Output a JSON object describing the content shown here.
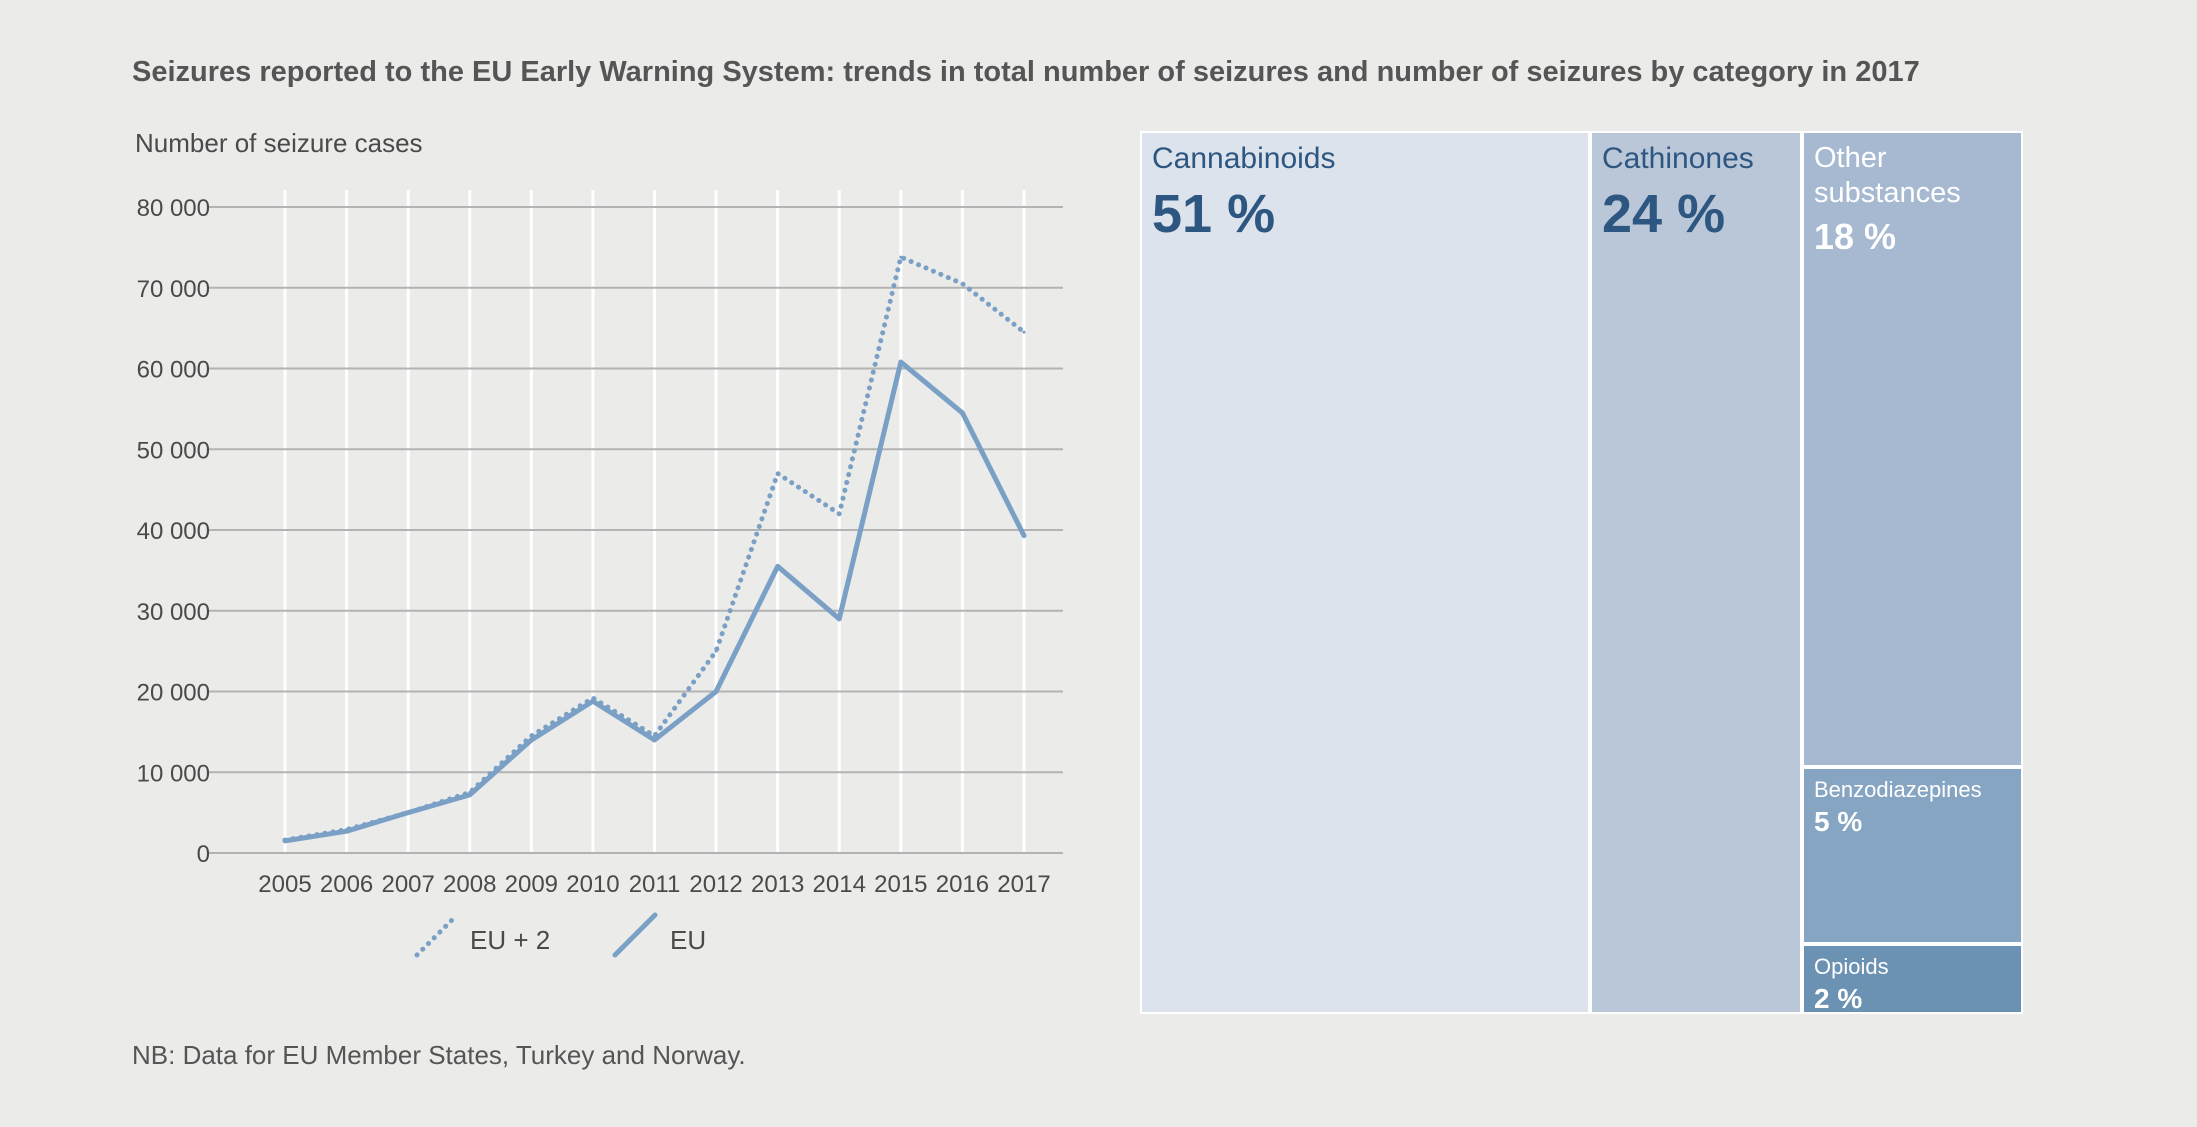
{
  "title": "Seizures reported to the EU Early Warning System: trends in total number of seizures and number of seizures by category in 2017",
  "footnote": "NB: Data for EU Member States, Turkey and Norway.",
  "colors": {
    "line": "#7aa0c6",
    "grid": "#b3b3b3",
    "vgrid": "#ffffff",
    "dark_text": "#2d5680",
    "light_text": "#ffffff"
  },
  "chart_data": [
    {
      "type": "line",
      "ylabel": "Number of seizure cases",
      "xlabel": "",
      "ylim": [
        0,
        80000
      ],
      "yticks": [
        0,
        10000,
        20000,
        30000,
        40000,
        50000,
        60000,
        70000,
        80000
      ],
      "ytick_labels": [
        "0",
        "10 000",
        "20 000",
        "30 000",
        "40 000",
        "50 000",
        "60 000",
        "70 000",
        "80 000"
      ],
      "categories": [
        "2005",
        "2006",
        "2007",
        "2008",
        "2009",
        "2010",
        "2011",
        "2012",
        "2013",
        "2014",
        "2015",
        "2016",
        "2017"
      ],
      "grid": true,
      "legend_position": "bottom",
      "series": [
        {
          "name": "EU + 2",
          "style": "dotted",
          "values": [
            1600,
            2900,
            5000,
            7500,
            14500,
            19200,
            14500,
            25000,
            47000,
            42000,
            73800,
            70500,
            64500
          ]
        },
        {
          "name": "EU",
          "style": "solid",
          "values": [
            1500,
            2700,
            5000,
            7200,
            14000,
            18800,
            14000,
            20000,
            35500,
            29000,
            60800,
            54500,
            39300
          ]
        }
      ]
    },
    {
      "type": "treemap",
      "year": "2017",
      "items": [
        {
          "name": "Cannabinoids",
          "value": 51,
          "label": "51 %",
          "color": "#dce3ec",
          "text": "#2d5680"
        },
        {
          "name": "Cathinones",
          "value": 24,
          "label": "24 %",
          "color": "#bac7d8",
          "text": "#2d5680"
        },
        {
          "name": "Other substances",
          "value": 18,
          "label": "18 %",
          "color": "#a6b9d1",
          "text": "#ffffff"
        },
        {
          "name": "Benzodiazepines",
          "value": 5,
          "label": "5 %",
          "color": "#86a5c3",
          "text": "#ffffff"
        },
        {
          "name": "Opioids",
          "value": 2,
          "label": "2 %",
          "color": "#6c92b3",
          "text": "#ffffff"
        }
      ]
    }
  ]
}
